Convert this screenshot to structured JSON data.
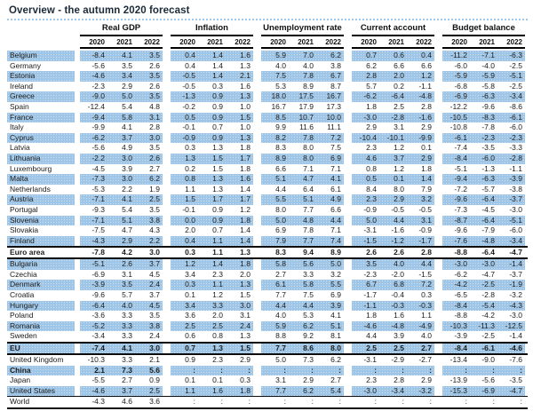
{
  "title": "Overview - the autumn 2020 forecast",
  "header": {
    "groups": [
      {
        "label": "Real GDP"
      },
      {
        "label": "Inflation"
      },
      {
        "label": "Unemployment rate"
      },
      {
        "label": "Current account"
      },
      {
        "label": "Budget balance"
      }
    ],
    "years": [
      "2020",
      "2021",
      "2022"
    ]
  },
  "colors": {
    "row_highlight": "#9fc6e7",
    "header_rule": "#000000",
    "title_divider": "#9cc7e8"
  },
  "rows": [
    {
      "name": "Belgium",
      "v": [
        "-8.4",
        "4.1",
        "3.5",
        "0.4",
        "1.4",
        "1.6",
        "5.9",
        "7.0",
        "6.2",
        "0.7",
        "0.6",
        "0.4",
        "-11.2",
        "-7.1",
        "-6.3"
      ]
    },
    {
      "name": "Germany",
      "v": [
        "-5.6",
        "3.5",
        "2.6",
        "0.4",
        "1.4",
        "1.3",
        "4.0",
        "4.0",
        "3.8",
        "6.2",
        "6.6",
        "6.6",
        "-6.0",
        "-4.0",
        "-2.5"
      ]
    },
    {
      "name": "Estonia",
      "v": [
        "-4.6",
        "3.4",
        "3.5",
        "-0.5",
        "1.4",
        "2.1",
        "7.5",
        "7.8",
        "6.7",
        "2.8",
        "2.0",
        "1.2",
        "-5.9",
        "-5.9",
        "-5.1"
      ]
    },
    {
      "name": "Ireland",
      "v": [
        "-2.3",
        "2.9",
        "2.6",
        "-0.5",
        "0.3",
        "1.6",
        "5.3",
        "8.9",
        "8.7",
        "5.7",
        "0.2",
        "-1.1",
        "-6.8",
        "-5.8",
        "-2.5"
      ]
    },
    {
      "name": "Greece",
      "v": [
        "-9.0",
        "5.0",
        "3.5",
        "-1.3",
        "0.9",
        "1.3",
        "18.0",
        "17.5",
        "16.7",
        "-6.2",
        "-6.4",
        "-4.8",
        "-6.9",
        "-6.3",
        "-3.4"
      ]
    },
    {
      "name": "Spain",
      "v": [
        "-12.4",
        "5.4",
        "4.8",
        "-0.2",
        "0.9",
        "1.0",
        "16.7",
        "17.9",
        "17.3",
        "1.8",
        "2.5",
        "2.8",
        "-12.2",
        "-9.6",
        "-8.6"
      ]
    },
    {
      "name": "France",
      "v": [
        "-9.4",
        "5.8",
        "3.1",
        "0.5",
        "0.9",
        "1.5",
        "8.5",
        "10.7",
        "10.0",
        "-3.0",
        "-2.8",
        "-1.6",
        "-10.5",
        "-8.3",
        "-6.1"
      ]
    },
    {
      "name": "Italy",
      "v": [
        "-9.9",
        "4.1",
        "2.8",
        "-0.1",
        "0.7",
        "1.0",
        "9.9",
        "11.6",
        "11.1",
        "2.9",
        "3.1",
        "2.9",
        "-10.8",
        "-7.8",
        "-6.0"
      ]
    },
    {
      "name": "Cyprus",
      "v": [
        "-6.2",
        "3.7",
        "3.0",
        "-0.9",
        "0.9",
        "1.3",
        "8.2",
        "7.8",
        "7.2",
        "-10.4",
        "-10.1",
        "-9.9",
        "-6.1",
        "-2.3",
        "-2.3"
      ]
    },
    {
      "name": "Latvia",
      "v": [
        "-5.6",
        "4.9",
        "3.5",
        "0.3",
        "1.3",
        "1.8",
        "8.3",
        "8.0",
        "7.5",
        "2.3",
        "1.2",
        "0.1",
        "-7.4",
        "-3.5",
        "-3.3"
      ]
    },
    {
      "name": "Lithuania",
      "v": [
        "-2.2",
        "3.0",
        "2.6",
        "1.3",
        "1.5",
        "1.7",
        "8.9",
        "8.0",
        "6.9",
        "4.6",
        "3.7",
        "2.9",
        "-8.4",
        "-6.0",
        "-2.8"
      ]
    },
    {
      "name": "Luxembourg",
      "v": [
        "-4.5",
        "3.9",
        "2.7",
        "0.2",
        "1.5",
        "1.8",
        "6.6",
        "7.1",
        "7.1",
        "0.8",
        "1.2",
        "1.8",
        "-5.1",
        "-1.3",
        "-1.1"
      ]
    },
    {
      "name": "Malta",
      "v": [
        "-7.3",
        "3.0",
        "6.2",
        "0.8",
        "1.3",
        "1.6",
        "5.1",
        "4.7",
        "4.1",
        "0.5",
        "0.1",
        "1.4",
        "-9.4",
        "-6.3",
        "-3.9"
      ]
    },
    {
      "name": "Netherlands",
      "v": [
        "-5.3",
        "2.2",
        "1.9",
        "1.1",
        "1.3",
        "1.4",
        "4.4",
        "6.4",
        "6.1",
        "8.4",
        "8.0",
        "7.9",
        "-7.2",
        "-5.7",
        "-3.8"
      ]
    },
    {
      "name": "Austria",
      "v": [
        "-7.1",
        "4.1",
        "2.5",
        "1.5",
        "1.7",
        "1.7",
        "5.5",
        "5.1",
        "4.9",
        "2.3",
        "2.9",
        "3.2",
        "-9.6",
        "-6.4",
        "-3.7"
      ]
    },
    {
      "name": "Portugal",
      "v": [
        "-9.3",
        "5.4",
        "3.5",
        "-0.1",
        "0.9",
        "1.2",
        "8.0",
        "7.7",
        "6.6",
        "-0.9",
        "-0.5",
        "-0.5",
        "-7.3",
        "-4.5",
        "-3.0"
      ]
    },
    {
      "name": "Slovenia",
      "v": [
        "-7.1",
        "5.1",
        "3.8",
        "0.0",
        "0.9",
        "1.8",
        "5.0",
        "4.8",
        "4.4",
        "5.0",
        "4.4",
        "3.1",
        "-8.7",
        "-6.4",
        "-5.1"
      ]
    },
    {
      "name": "Slovakia",
      "v": [
        "-7.5",
        "4.7",
        "4.3",
        "2.0",
        "0.7",
        "1.4",
        "6.9",
        "7.8",
        "7.1",
        "-3.1",
        "-1.6",
        "-0.9",
        "-9.6",
        "-7.9",
        "-6.0"
      ]
    },
    {
      "name": "Finland",
      "v": [
        "-4.3",
        "2.9",
        "2.2",
        "0.4",
        "1.1",
        "1.4",
        "7.9",
        "7.7",
        "7.4",
        "-1.5",
        "-1.2",
        "-1.7",
        "-7.6",
        "-4.8",
        "-3.4"
      ]
    },
    {
      "name": "Euro area",
      "bold": true,
      "sep": true,
      "v": [
        "-7.8",
        "4.2",
        "3.0",
        "0.3",
        "1.1",
        "1.3",
        "8.3",
        "9.4",
        "8.9",
        "2.6",
        "2.6",
        "2.8",
        "-8.8",
        "-6.4",
        "-4.7"
      ]
    },
    {
      "name": "Bulgaria",
      "v": [
        "-5.1",
        "2.6",
        "3.7",
        "1.2",
        "1.4",
        "1.8",
        "5.8",
        "5.6",
        "5.0",
        "3.5",
        "4.0",
        "4.4",
        "-3.0",
        "-3.0",
        "-1.4"
      ]
    },
    {
      "name": "Czechia",
      "v": [
        "-6.9",
        "3.1",
        "4.5",
        "3.4",
        "2.3",
        "2.0",
        "2.7",
        "3.3",
        "3.2",
        "-2.3",
        "-2.0",
        "-1.5",
        "-6.2",
        "-4.7",
        "-3.7"
      ]
    },
    {
      "name": "Denmark",
      "v": [
        "-3.9",
        "3.5",
        "2.4",
        "0.3",
        "1.1",
        "1.3",
        "6.1",
        "5.8",
        "5.5",
        "6.7",
        "6.8",
        "7.2",
        "-4.2",
        "-2.5",
        "-1.9"
      ]
    },
    {
      "name": "Croatia",
      "v": [
        "-9.6",
        "5.7",
        "3.7",
        "0.1",
        "1.2",
        "1.5",
        "7.7",
        "7.5",
        "6.9",
        "-1.7",
        "-0.4",
        "0.3",
        "-6.5",
        "-2.8",
        "-3.2"
      ]
    },
    {
      "name": "Hungary",
      "v": [
        "-6.4",
        "4.0",
        "4.5",
        "3.4",
        "3.3",
        "3.0",
        "4.4",
        "4.4",
        "3.9",
        "-1.1",
        "-0.3",
        "-0.3",
        "-8.4",
        "-5.4",
        "-4.3"
      ]
    },
    {
      "name": "Poland",
      "v": [
        "-3.6",
        "3.3",
        "3.5",
        "3.6",
        "2.0",
        "3.1",
        "4.0",
        "5.3",
        "4.1",
        "1.8",
        "1.6",
        "1.1",
        "-8.8",
        "-4.2",
        "-3.0"
      ]
    },
    {
      "name": "Romania",
      "v": [
        "-5.2",
        "3.3",
        "3.8",
        "2.5",
        "2.5",
        "2.4",
        "5.9",
        "6.2",
        "5.1",
        "-4.6",
        "-4.8",
        "-4.9",
        "-10.3",
        "-11.3",
        "-12.5"
      ]
    },
    {
      "name": "Sweden",
      "v": [
        "-3.4",
        "3.3",
        "2.4",
        "0.6",
        "0.8",
        "1.3",
        "8.8",
        "9.2",
        "8.1",
        "4.4",
        "3.9",
        "4.0",
        "-3.9",
        "-2.5",
        "-1.4"
      ]
    },
    {
      "name": "EU",
      "bold": true,
      "sep": true,
      "v": [
        "-7.4",
        "4.1",
        "3.0",
        "0.7",
        "1.3",
        "1.5",
        "7.7",
        "8.6",
        "8.0",
        "2.5",
        "2.5",
        "2.7",
        "-8.4",
        "-6.1",
        "-4.6"
      ]
    },
    {
      "name": "United Kingdom",
      "v": [
        "-10.3",
        "3.3",
        "2.1",
        "0.9",
        "2.3",
        "2.9",
        "5.0",
        "7.3",
        "6.2",
        "-3.1",
        "-2.9",
        "-2.7",
        "-13.4",
        "-9.0",
        "-7.6"
      ]
    },
    {
      "name": "China",
      "bold": true,
      "v": [
        "2.1",
        "7.3",
        "5.6",
        ":",
        ":",
        ":",
        ":",
        ":",
        ":",
        ":",
        ":",
        ":",
        ":",
        ":",
        ":"
      ]
    },
    {
      "name": "Japan",
      "v": [
        "-5.5",
        "2.7",
        "0.9",
        "0.1",
        "0.1",
        "0.3",
        "3.1",
        "2.9",
        "2.7",
        "2.3",
        "2.8",
        "2.9",
        "-13.9",
        "-5.6",
        "-3.5"
      ]
    },
    {
      "name": "United States",
      "v": [
        "-4.6",
        "3.7",
        "2.5",
        "1.1",
        "1.6",
        "1.8",
        "7.7",
        "6.2",
        "5.4",
        "-3.0",
        "-3.4",
        "-3.2",
        "-15.3",
        "-6.9",
        "-4.7"
      ]
    },
    {
      "name": "World",
      "end": true,
      "v": [
        "-4.3",
        "4.6",
        "3.6",
        ":",
        ":",
        ":",
        ":",
        ":",
        ":",
        ":",
        ":",
        ":",
        ":",
        ":",
        ":"
      ]
    }
  ]
}
